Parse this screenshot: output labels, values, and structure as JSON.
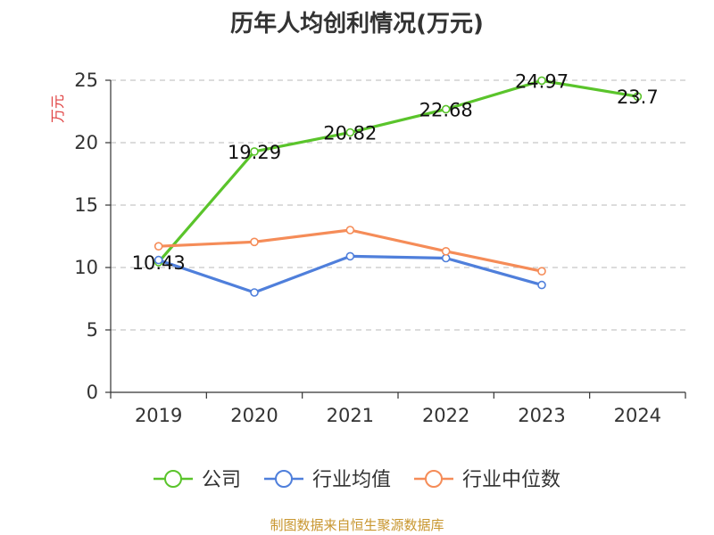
{
  "chart_data": {
    "type": "line",
    "title": "历年人均创利情况(万元)",
    "ylabel": "万元",
    "xlabel": "",
    "categories": [
      "2019",
      "2020",
      "2021",
      "2022",
      "2023",
      "2024"
    ],
    "ylim": [
      0,
      25
    ],
    "yticks": [
      0,
      5,
      10,
      15,
      20,
      25
    ],
    "grid": true,
    "legend_position": "bottom",
    "series": [
      {
        "name": "公司",
        "color": "#5ac42b",
        "values": [
          10.43,
          19.29,
          20.82,
          22.68,
          24.97,
          23.7
        ],
        "labels": [
          "10.43",
          "19.29",
          "20.82",
          "22.68",
          "24.97",
          "23.7"
        ]
      },
      {
        "name": "行业均值",
        "color": "#4f7fdb",
        "values": [
          10.6,
          8.0,
          10.9,
          10.75,
          8.6,
          null
        ]
      },
      {
        "name": "行业中位数",
        "color": "#f58c58",
        "values": [
          11.7,
          12.05,
          13.0,
          11.3,
          9.7,
          null
        ]
      }
    ]
  },
  "ylabel_color": "#e04040",
  "footer": {
    "source": "制图数据来自恒生聚源数据库"
  }
}
